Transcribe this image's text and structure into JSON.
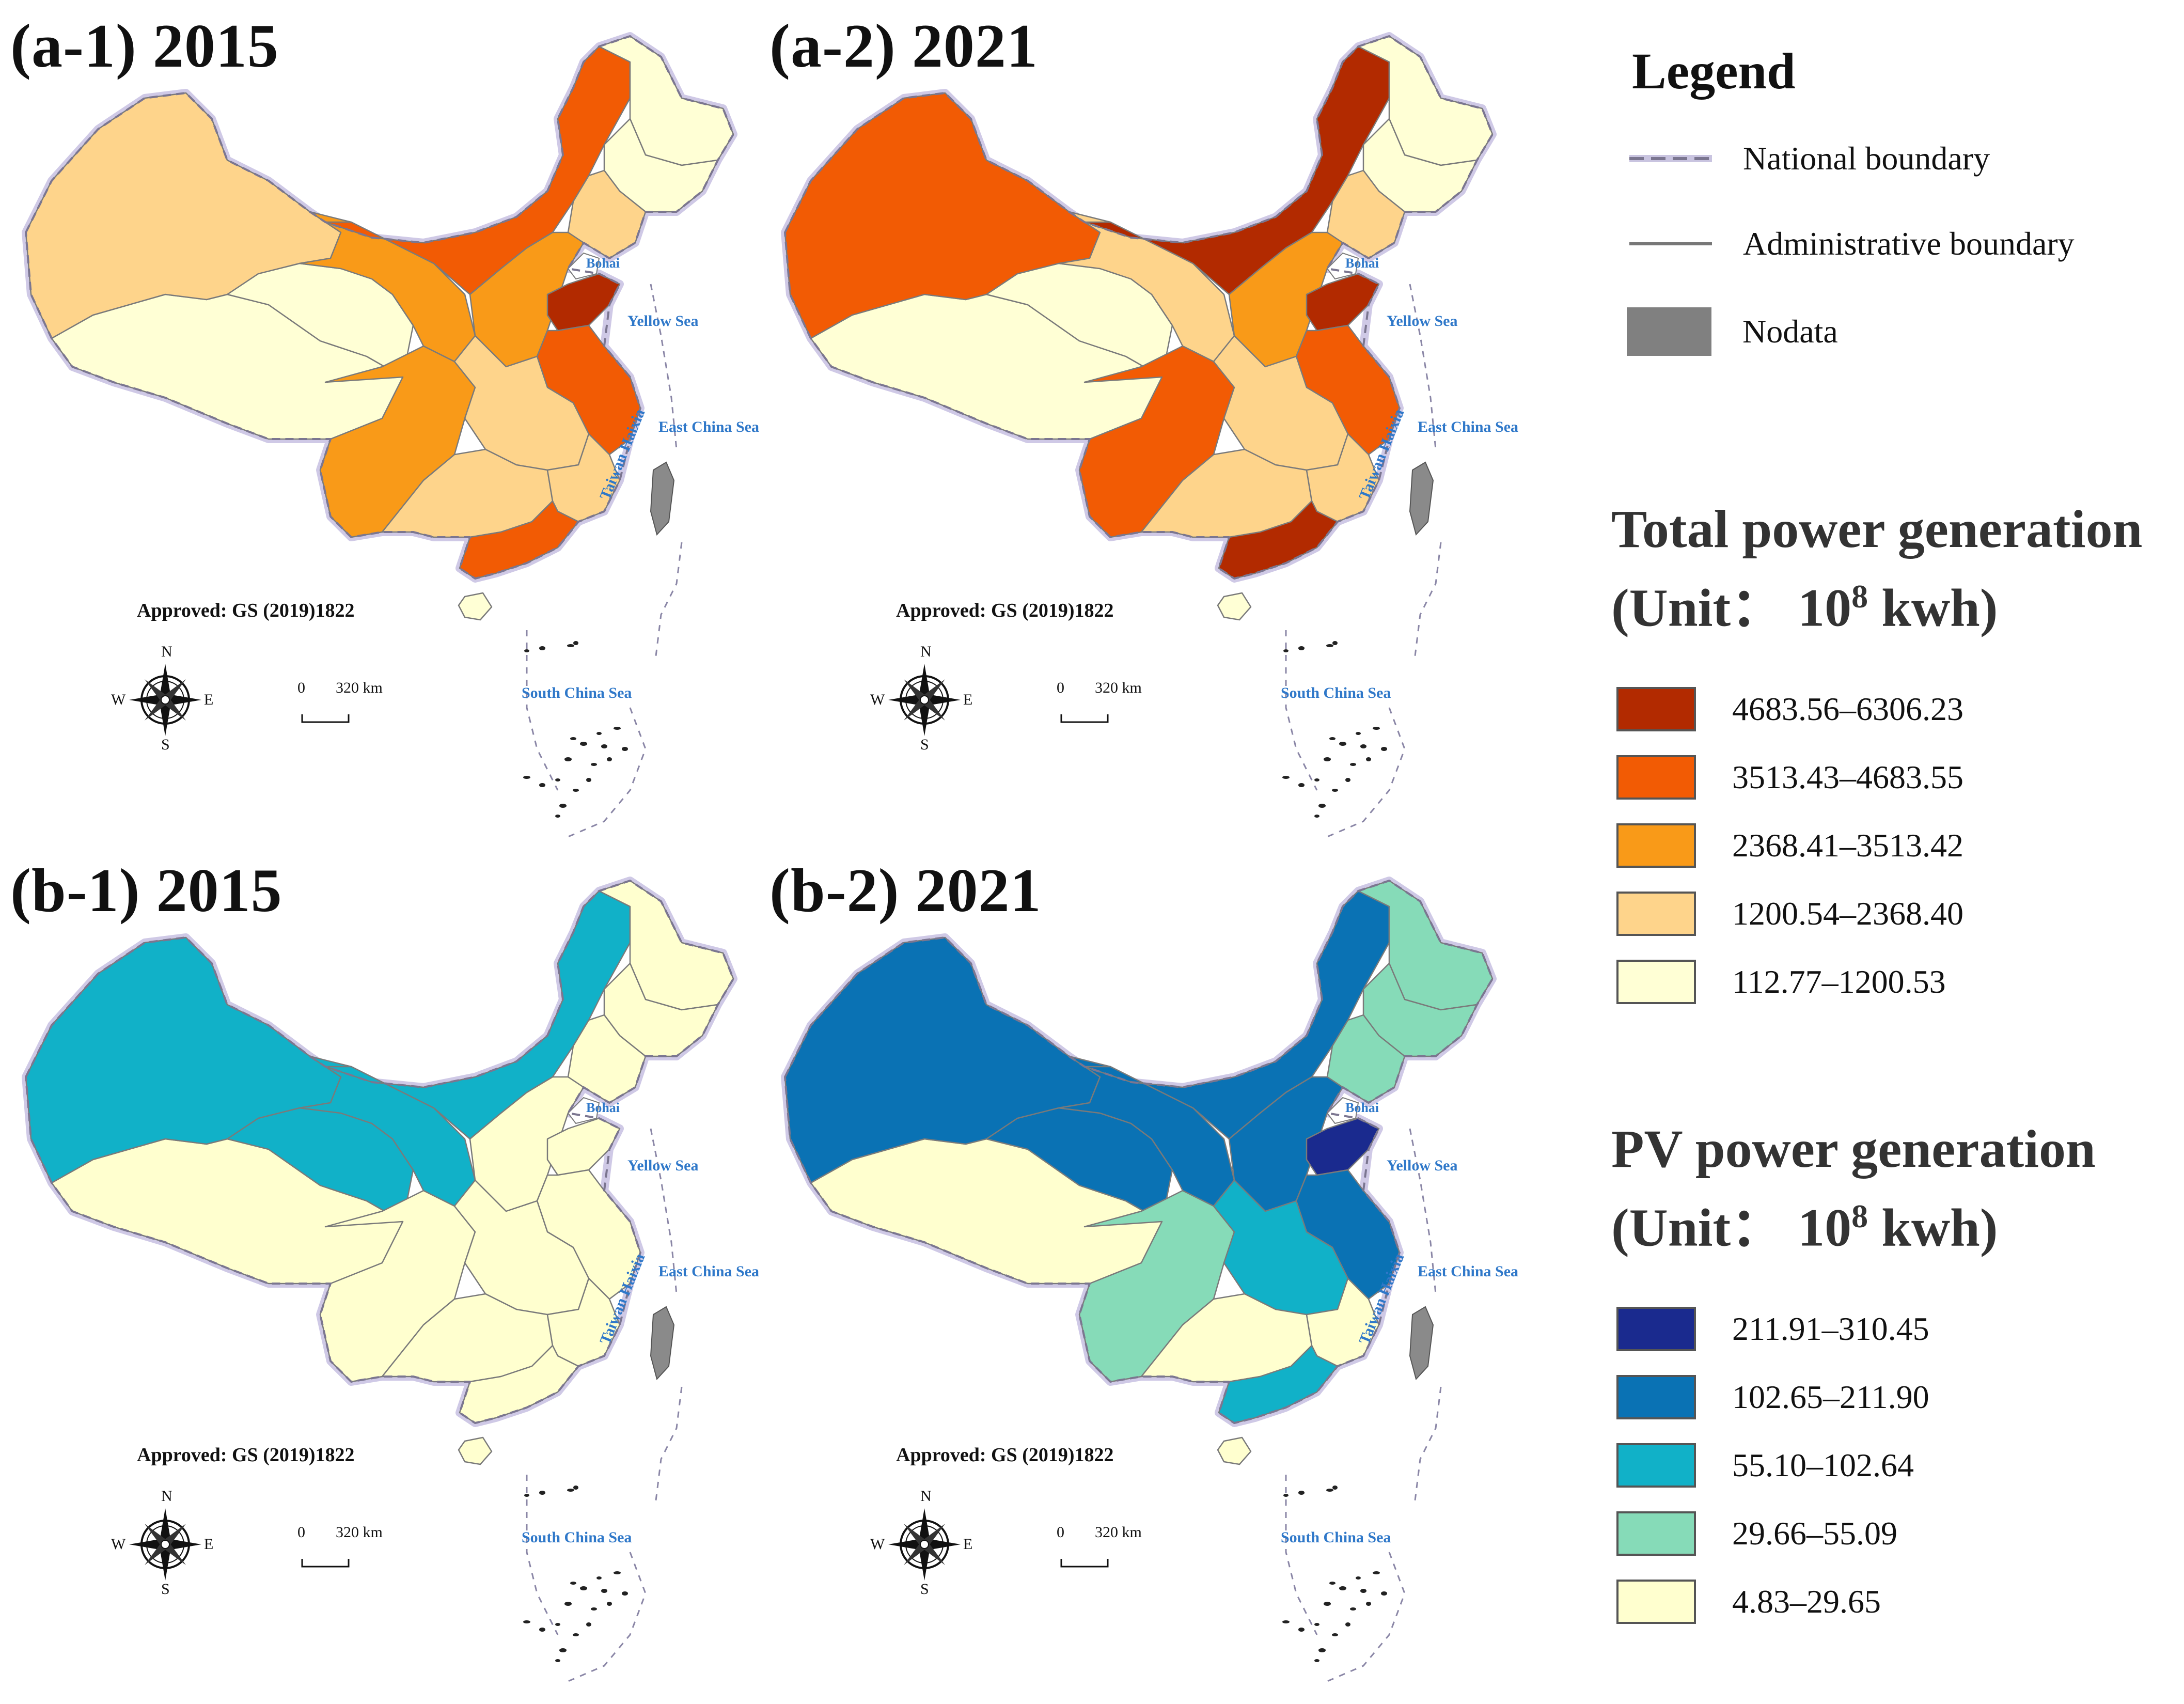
{
  "panels": [
    {
      "id": "a1",
      "title": "(a-1) 2015",
      "scheme": "total",
      "regions": {
        "nw": 1,
        "tibet": 0,
        "qinghai": 0,
        "gansu": 2,
        "nmg": 3,
        "hlj": 0,
        "jl": 0,
        "ln": 1,
        "north": 2,
        "sd": 4,
        "east": 3,
        "sc": 2,
        "central": 1,
        "south": 1,
        "gd": 3,
        "fj": 1,
        "hainan": 0
      }
    },
    {
      "id": "a2",
      "title": "(a-2) 2021",
      "scheme": "total",
      "regions": {
        "nw": 3,
        "tibet": 0,
        "qinghai": 0,
        "gansu": 1,
        "nmg": 4,
        "hlj": 0,
        "jl": 0,
        "ln": 1,
        "north": 2,
        "sd": 4,
        "east": 3,
        "sc": 3,
        "central": 1,
        "south": 1,
        "gd": 4,
        "fj": 1,
        "hainan": 0
      }
    },
    {
      "id": "b1",
      "title": "(b-1) 2015",
      "scheme": "pv",
      "regions": {
        "nw": 2,
        "tibet": 0,
        "qinghai": 2,
        "gansu": 2,
        "nmg": 2,
        "hlj": 0,
        "jl": 0,
        "ln": 0,
        "north": 0,
        "sd": 0,
        "east": 0,
        "sc": 0,
        "central": 0,
        "south": 0,
        "gd": 0,
        "fj": 0,
        "hainan": 0
      }
    },
    {
      "id": "b2",
      "title": "(b-2) 2021",
      "scheme": "pv",
      "regions": {
        "nw": 3,
        "tibet": 0,
        "qinghai": 3,
        "gansu": 3,
        "nmg": 3,
        "hlj": 1,
        "jl": 1,
        "ln": 1,
        "north": 3,
        "sd": 4,
        "east": 3,
        "sc": 1,
        "central": 2,
        "south": 0,
        "gd": 2,
        "fj": 0,
        "hainan": 0
      }
    }
  ],
  "map_labels": {
    "approved": "Approved: GS (2019)1822",
    "bohai": "Bohai",
    "yellow_sea": "Yellow Sea",
    "east_china_sea": "East China Sea",
    "taiwan_haixia": "Taiwan Haixia",
    "south_china_sea": "South China Sea",
    "compass": {
      "n": "N",
      "s": "S",
      "e": "E",
      "w": "W"
    },
    "scale_zero": "0",
    "scale_value": "320 km"
  },
  "legend": {
    "title": "Legend",
    "items": [
      {
        "label": "National boundary",
        "symbol": "dashed-line",
        "color": "#8a86a6"
      },
      {
        "label": "Administrative boundary",
        "symbol": "solid-line",
        "color": "#777777"
      },
      {
        "label": "Nodata",
        "symbol": "box",
        "color": "#808080"
      }
    ],
    "total": {
      "heading_line1": "Total power generation",
      "heading_line2": "(Unit： 10",
      "heading_sup": "8",
      "heading_tail": " kwh)",
      "classes": [
        {
          "label": "4683.56–6306.23",
          "color": "#b22a00"
        },
        {
          "label": "3513.43–4683.55",
          "color": "#f25b04"
        },
        {
          "label": "2368.41–3513.42",
          "color": "#f99a18"
        },
        {
          "label": "1200.54–2368.40",
          "color": "#fed48b"
        },
        {
          "label": "112.77–1200.53",
          "color": "#ffffd5"
        }
      ]
    },
    "pv": {
      "heading_line1": "PV power generation",
      "heading_line2": "(Unit： 10",
      "heading_sup": "8",
      "heading_tail": " kwh)",
      "classes": [
        {
          "label": "211.91–310.45",
          "color": "#1a2a8e"
        },
        {
          "label": "102.65–211.90",
          "color": "#0a72b4"
        },
        {
          "label": "55.10–102.64",
          "color": "#11b1c8"
        },
        {
          "label": "29.66–55.09",
          "color": "#86dbb8"
        },
        {
          "label": "4.83–29.65",
          "color": "#ffffcf"
        }
      ]
    },
    "nodata_color": "#8a8a8a"
  }
}
